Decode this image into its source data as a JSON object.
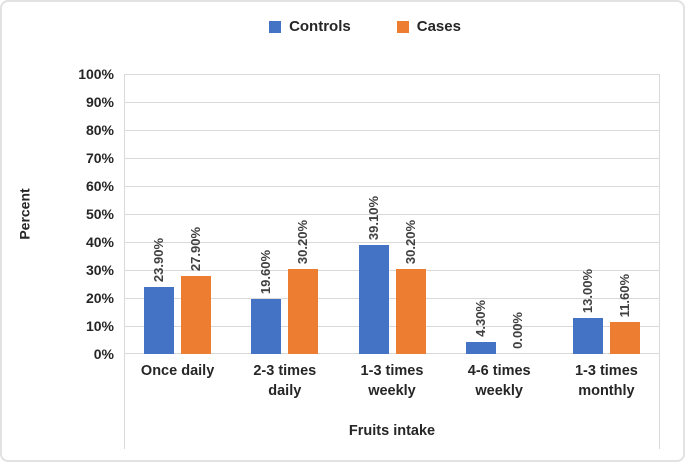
{
  "chart_data": {
    "type": "bar",
    "title": "",
    "xlabel": "Fruits intake",
    "ylabel": "Percent",
    "categories": [
      "Once daily",
      "2-3 times\ndaily",
      "1-3 times\nweekly",
      "4-6 times\nweekly",
      "1-3 times\nmonthly"
    ],
    "series": [
      {
        "name": "Controls",
        "color": "#4472C4",
        "values": [
          23.9,
          19.6,
          39.1,
          4.3,
          13.0
        ],
        "labels": [
          "23.90%",
          "19.60%",
          "39.10%",
          "4.30%",
          "13.00%"
        ]
      },
      {
        "name": "Cases",
        "color": "#ED7D31",
        "values": [
          27.9,
          30.2,
          30.2,
          0.0,
          11.6
        ],
        "labels": [
          "27.90%",
          "30.20%",
          "30.20%",
          "0.00%",
          "11.60%"
        ]
      }
    ],
    "ylim": [
      0,
      100
    ],
    "ytick_step": 10,
    "ytick_labels": [
      "0%",
      "10%",
      "20%",
      "30%",
      "40%",
      "50%",
      "60%",
      "70%",
      "80%",
      "90%",
      "100%"
    ],
    "grid": "horizontal",
    "legend_position": "top",
    "colors": {
      "gridline": "#d9d9d9",
      "text": "#262626",
      "data_label": "#404040"
    }
  }
}
